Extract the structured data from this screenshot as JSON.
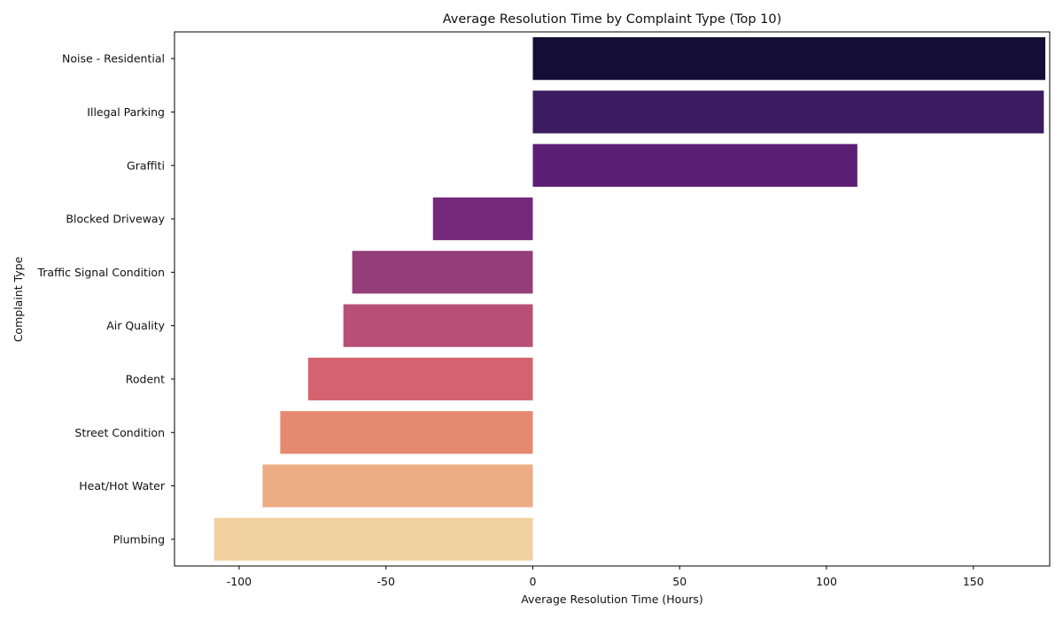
{
  "chart_data": {
    "type": "bar",
    "orientation": "horizontal",
    "title": "Average Resolution Time by Complaint Type (Top 10)",
    "xlabel": "Average Resolution Time (Hours)",
    "ylabel": "Complaint Type",
    "xlim": [
      -122,
      176
    ],
    "xticks": [
      -100,
      -50,
      0,
      50,
      100,
      150
    ],
    "xtick_labels": [
      "-100",
      "-50",
      "0",
      "50",
      "100",
      "150"
    ],
    "grid": false,
    "legend": "none",
    "categories": [
      "Noise - Residential",
      "Illegal Parking",
      "Graffiti",
      "Blocked Driveway",
      "Traffic Signal Condition",
      "Air Quality",
      "Rodent",
      "Street Condition",
      "Heat/Hot Water",
      "Plumbing"
    ],
    "values": [
      174.5,
      174.0,
      110.5,
      -34.0,
      -61.5,
      -64.5,
      -76.5,
      -86.0,
      -92.0,
      -108.5
    ],
    "colors": [
      "#140e36",
      "#3b1c61",
      "#5a1f75",
      "#75297a",
      "#943e79",
      "#b84f74",
      "#d5626f",
      "#e58a70",
      "#ecac84",
      "#f1d19f"
    ]
  }
}
